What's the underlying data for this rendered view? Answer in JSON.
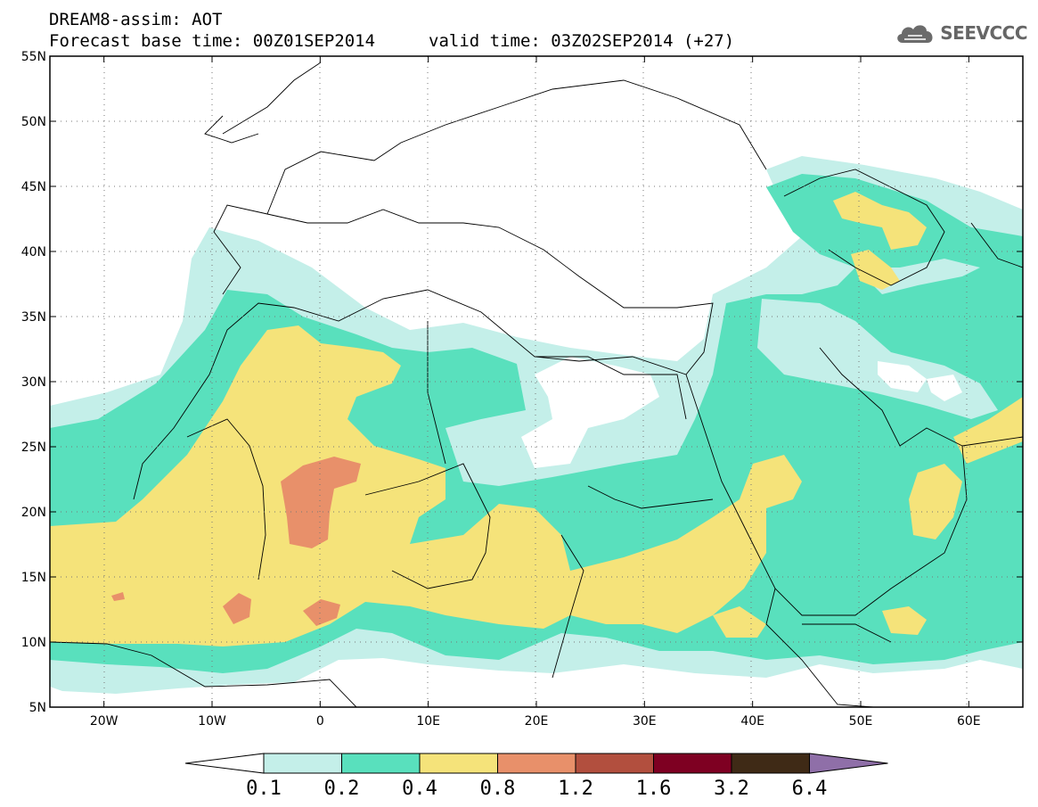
{
  "title": {
    "line1": "DREAM8-assim: AOT",
    "line2": "Forecast base time: 00Z01SEP2014",
    "line2b": "valid time: 03Z02SEP2014 (+27)"
  },
  "logo": {
    "text": "SEEVCCC",
    "icon": "cloud-icon"
  },
  "map": {
    "lon_range": [
      -25,
      65
    ],
    "lat_range": [
      5,
      55
    ],
    "lon_ticks": [
      {
        "value": -20,
        "label": "20W"
      },
      {
        "value": -10,
        "label": "10W"
      },
      {
        "value": 0,
        "label": "0"
      },
      {
        "value": 10,
        "label": "10E"
      },
      {
        "value": 20,
        "label": "20E"
      },
      {
        "value": 30,
        "label": "30E"
      },
      {
        "value": 40,
        "label": "40E"
      },
      {
        "value": 50,
        "label": "50E"
      },
      {
        "value": 60,
        "label": "60E"
      }
    ],
    "lat_ticks": [
      {
        "value": 55,
        "label": "55N"
      },
      {
        "value": 50,
        "label": "50N"
      },
      {
        "value": 45,
        "label": "45N"
      },
      {
        "value": 40,
        "label": "40N"
      },
      {
        "value": 35,
        "label": "35N"
      },
      {
        "value": 30,
        "label": "30N"
      },
      {
        "value": 25,
        "label": "25N"
      },
      {
        "value": 20,
        "label": "20N"
      },
      {
        "value": 15,
        "label": "15N"
      },
      {
        "value": 10,
        "label": "10N"
      },
      {
        "value": 5,
        "label": "5N"
      }
    ],
    "grid": "dotted"
  },
  "colorbar": {
    "labels": [
      "0.1",
      "0.2",
      "0.4",
      "0.8",
      "1.2",
      "1.6",
      "3.2",
      "6.4"
    ],
    "colors": [
      "#ffffff",
      "#c4efe9",
      "#59e0bd",
      "#f5e37a",
      "#e8906a",
      "#b24f3e",
      "#7e0022",
      "#3f2a16",
      "#8f6fa8"
    ]
  }
}
